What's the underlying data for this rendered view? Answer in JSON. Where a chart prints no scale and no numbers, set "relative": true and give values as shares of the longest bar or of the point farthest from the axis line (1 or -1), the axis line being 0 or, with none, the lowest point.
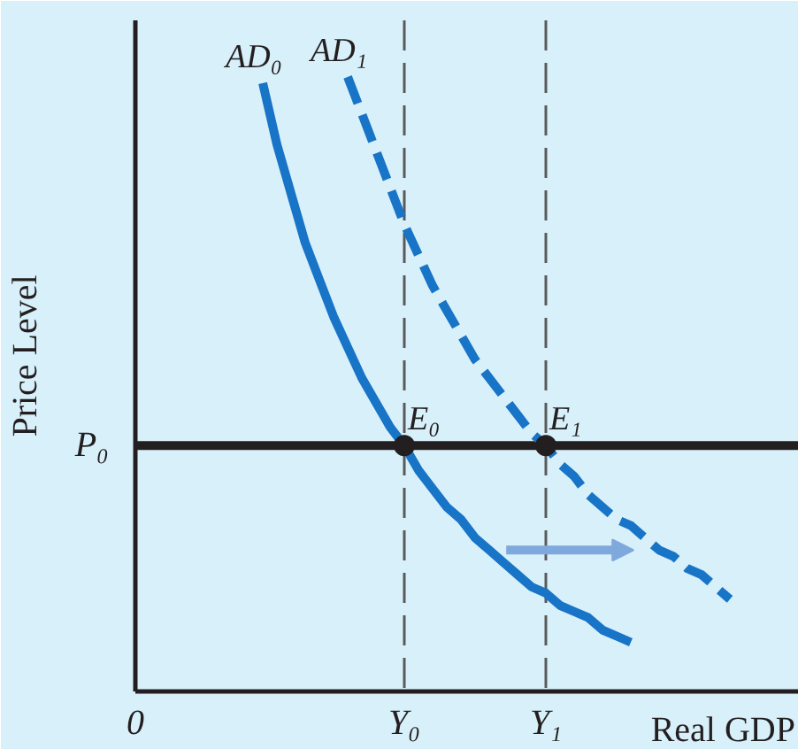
{
  "chart_data": {
    "type": "line",
    "relative": true,
    "xlabel": "Real GDP",
    "ylabel": "Price Level",
    "categories": [
      "0",
      null,
      null,
      null,
      null,
      null,
      null,
      null,
      null,
      null,
      null,
      null,
      null,
      null,
      null,
      null,
      null,
      null,
      null,
      "Y₀",
      null,
      null,
      null,
      null,
      null,
      null,
      null,
      null,
      null,
      "Y₁",
      null,
      null,
      null,
      null,
      null,
      null,
      null,
      null,
      null,
      null,
      null,
      null,
      null,
      null,
      null,
      null,
      null
    ],
    "series": [
      {
        "name": "AD₀",
        "color": "#1874c6",
        "line_style": "solid",
        "values": [
          null,
          null,
          null,
          null,
          null,
          null,
          null,
          null,
          null,
          0.99,
          0.89,
          0.81,
          0.73,
          0.67,
          0.61,
          0.56,
          0.51,
          0.47,
          0.43,
          0.4,
          0.36,
          0.33,
          0.3,
          0.28,
          0.25,
          0.23,
          0.21,
          0.19,
          0.17,
          0.16,
          0.14,
          0.13,
          0.12,
          0.1,
          0.09,
          0.08,
          null,
          null,
          null,
          null,
          null,
          null,
          null,
          null,
          null,
          null,
          null
        ]
      },
      {
        "name": "AD₁",
        "color": "#1874c6",
        "line_style": "dashed",
        "values": [
          null,
          null,
          null,
          null,
          null,
          null,
          null,
          null,
          null,
          null,
          null,
          null,
          null,
          null,
          null,
          1,
          0.94,
          0.88,
          0.82,
          0.76,
          0.71,
          0.66,
          0.62,
          0.58,
          0.54,
          0.51,
          0.48,
          0.45,
          0.42,
          0.4,
          0.37,
          0.35,
          0.32,
          0.3,
          0.28,
          0.27,
          0.25,
          0.23,
          0.22,
          0.2,
          0.19,
          0.17,
          0.15,
          null,
          null,
          null,
          null
        ]
      },
      {
        "type": "scatter",
        "color": "#231f20",
        "marker": "circle",
        "values": [
          null,
          null,
          null,
          null,
          null,
          null,
          null,
          null,
          null,
          null,
          null,
          null,
          null,
          null,
          null,
          null,
          null,
          null,
          null,
          0.4,
          null,
          null,
          null,
          null,
          null,
          null,
          null,
          null,
          null,
          0.4,
          null,
          null,
          null,
          null,
          null,
          null,
          null,
          null,
          null,
          null,
          null,
          null,
          null,
          null,
          null,
          null,
          null
        ]
      }
    ],
    "ref_lines": [
      {
        "axis": "y",
        "value": 0.4,
        "label": "P₀",
        "color": "#231f20",
        "line_style": "solid"
      },
      {
        "axis": "x",
        "value": "Y₀",
        "color": "#5a5a5a",
        "line_style": "dashed"
      },
      {
        "axis": "x",
        "value": "Y₁",
        "color": "#5a5a5a",
        "line_style": "dashed"
      }
    ],
    "annotations": [
      {
        "text": "E₀",
        "x": "Y₀",
        "y": 0.4
      },
      {
        "text": "E₁",
        "x": "Y₁",
        "y": 0.4
      }
    ]
  }
}
